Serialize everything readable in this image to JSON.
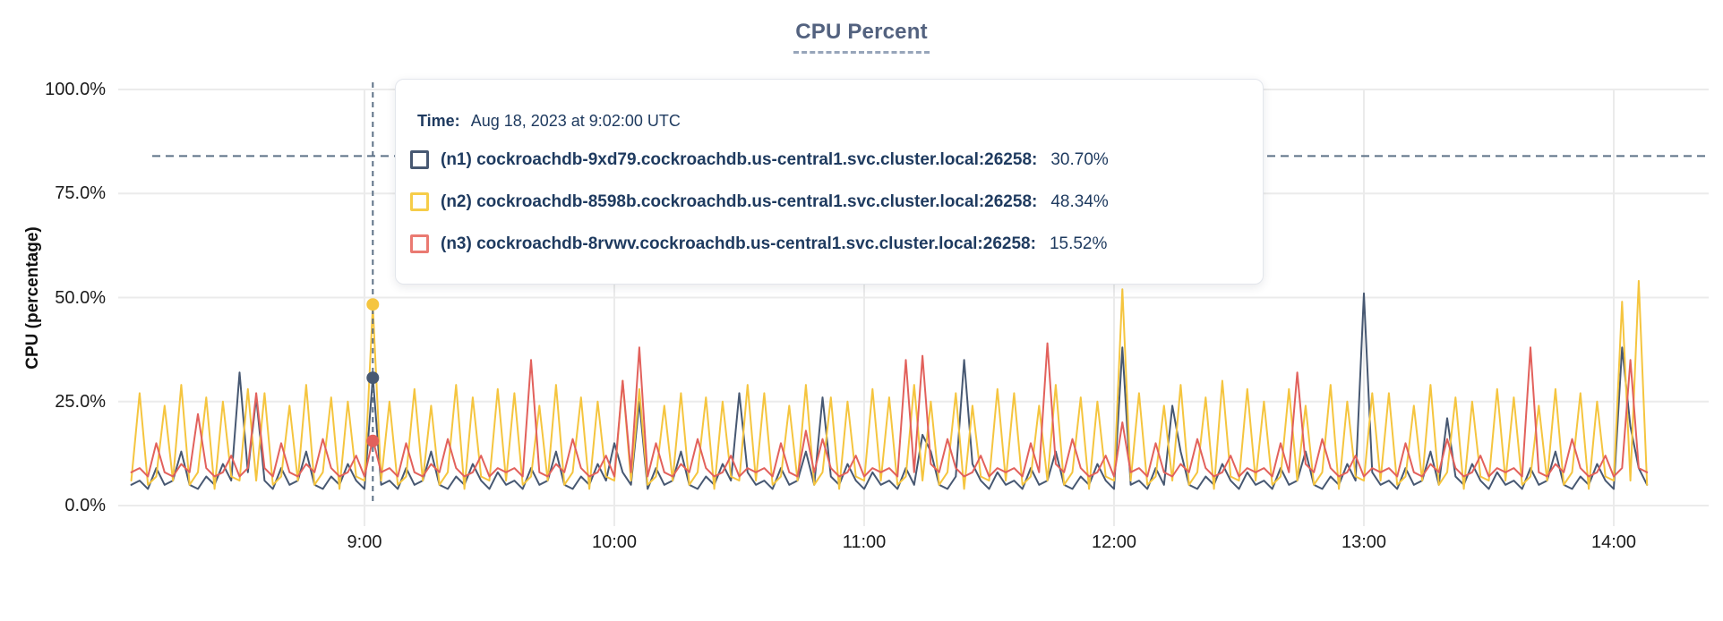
{
  "title": "CPU Percent",
  "tooltip": {
    "time_label": "Time:",
    "time_value": "Aug 18, 2023 at 9:02:00 UTC",
    "rows": [
      {
        "label": "(n1) cockroachdb-9xd79.cockroachdb.us-central1.svc.cluster.local:26258:",
        "value": "30.70%",
        "swatch_color": "#475872"
      },
      {
        "label": "(n2) cockroachdb-8598b.cockroachdb.us-central1.svc.cluster.local:26258:",
        "value": "48.34%",
        "swatch_color": "#f6cd49"
      },
      {
        "label": "(n3) cockroachdb-8rvwv.cockroachdb.us-central1.svc.cluster.local:26258:",
        "value": "15.52%",
        "swatch_color": "#ea7a72"
      }
    ]
  },
  "chart_data": {
    "type": "line",
    "title": "CPU Percent",
    "xlabel": "",
    "ylabel": "CPU (percentage)",
    "ylim": [
      0,
      100
    ],
    "grid": true,
    "crosshair_color": "#5d7186",
    "threshold_dashed_percent": 84,
    "y_ticks": [
      {
        "label": "100.0%",
        "value": 100
      },
      {
        "label": "75.0%",
        "value": 75
      },
      {
        "label": "50.0%",
        "value": 50
      },
      {
        "label": "25.0%",
        "value": 25
      },
      {
        "label": "0.0%",
        "value": 0
      }
    ],
    "x_ticks": [
      {
        "label": "9:00",
        "minutes": 540
      },
      {
        "label": "10:00",
        "minutes": 600
      },
      {
        "label": "11:00",
        "minutes": 660
      },
      {
        "label": "12:00",
        "minutes": 720
      },
      {
        "label": "13:00",
        "minutes": 780
      },
      {
        "label": "14:00",
        "minutes": 840
      }
    ],
    "hover": {
      "time": "9:02",
      "minutes": 542,
      "points": [
        {
          "series": "n1",
          "value": 30.7
        },
        {
          "series": "n2",
          "value": 48.34
        },
        {
          "series": "n3",
          "value": 15.52
        }
      ]
    },
    "x_start_minutes": 484,
    "x_step_minutes": 2,
    "series": [
      {
        "name": "(n1) cockroachdb-9xd79.cockroachdb.us-central1.svc.cluster.local:26258",
        "color": "#475872",
        "values": [
          5,
          6,
          4,
          9,
          5,
          6,
          13,
          5,
          4,
          7,
          5,
          10,
          6,
          32,
          8,
          26,
          6,
          4,
          9,
          5,
          6,
          13,
          5,
          4,
          7,
          5,
          10,
          6,
          4,
          31,
          5,
          6,
          4,
          9,
          5,
          6,
          13,
          5,
          4,
          7,
          5,
          10,
          6,
          4,
          8,
          5,
          6,
          4,
          9,
          5,
          6,
          13,
          5,
          4,
          7,
          5,
          10,
          6,
          15,
          8,
          5,
          25,
          4,
          9,
          5,
          6,
          13,
          5,
          4,
          7,
          5,
          10,
          6,
          27,
          8,
          5,
          6,
          4,
          9,
          5,
          6,
          13,
          5,
          26,
          7,
          5,
          10,
          6,
          4,
          8,
          5,
          6,
          4,
          9,
          5,
          17,
          13,
          5,
          4,
          7,
          35,
          10,
          6,
          4,
          8,
          5,
          6,
          4,
          9,
          5,
          6,
          13,
          5,
          4,
          7,
          5,
          10,
          6,
          4,
          38,
          5,
          6,
          4,
          9,
          5,
          24,
          13,
          5,
          4,
          7,
          5,
          10,
          6,
          4,
          8,
          5,
          6,
          4,
          9,
          5,
          6,
          13,
          5,
          4,
          7,
          5,
          10,
          6,
          51,
          8,
          5,
          6,
          4,
          9,
          5,
          6,
          13,
          5,
          21,
          7,
          5,
          10,
          6,
          4,
          8,
          5,
          6,
          4,
          9,
          5,
          6,
          13,
          5,
          4,
          7,
          5,
          10,
          6,
          4,
          38,
          19,
          9,
          5
        ]
      },
      {
        "name": "(n2) cockroachdb-8598b.cockroachdb.us-central1.svc.cluster.local:26258",
        "color": "#f5c53f",
        "values": [
          6,
          27,
          5,
          7,
          24,
          6,
          29,
          5,
          8,
          26,
          4,
          25,
          7,
          6,
          28,
          6,
          27,
          5,
          7,
          24,
          6,
          29,
          5,
          8,
          26,
          4,
          25,
          7,
          6,
          48,
          6,
          25,
          5,
          7,
          28,
          6,
          24,
          5,
          8,
          29,
          4,
          26,
          7,
          6,
          28,
          6,
          27,
          5,
          7,
          24,
          6,
          29,
          5,
          8,
          26,
          4,
          25,
          7,
          6,
          30,
          6,
          28,
          5,
          7,
          24,
          6,
          27,
          5,
          8,
          26,
          4,
          25,
          7,
          6,
          29,
          6,
          27,
          5,
          7,
          24,
          6,
          29,
          5,
          8,
          26,
          4,
          25,
          7,
          6,
          28,
          6,
          26,
          5,
          7,
          29,
          6,
          25,
          5,
          8,
          27,
          4,
          24,
          7,
          6,
          28,
          6,
          27,
          5,
          7,
          24,
          6,
          29,
          5,
          8,
          26,
          4,
          25,
          7,
          6,
          52,
          6,
          27,
          5,
          7,
          24,
          6,
          29,
          5,
          8,
          26,
          4,
          30,
          7,
          6,
          28,
          6,
          25,
          5,
          7,
          28,
          6,
          24,
          5,
          8,
          29,
          4,
          25,
          7,
          6,
          27,
          6,
          27,
          5,
          7,
          24,
          6,
          29,
          5,
          8,
          26,
          4,
          25,
          7,
          6,
          28,
          6,
          26,
          5,
          7,
          24,
          6,
          28,
          5,
          8,
          27,
          4,
          25,
          7,
          6,
          49,
          6,
          54,
          5
        ]
      },
      {
        "name": "(n3) cockroachdb-8rvwv.cockroachdb.us-central1.svc.cluster.local:26258",
        "color": "#e2615c",
        "values": [
          8,
          9,
          7,
          15,
          8,
          7,
          10,
          8,
          22,
          9,
          7,
          8,
          12,
          7,
          9,
          27,
          9,
          7,
          15,
          8,
          7,
          10,
          8,
          16,
          9,
          7,
          8,
          12,
          7,
          16,
          8,
          9,
          7,
          15,
          8,
          7,
          10,
          8,
          16,
          9,
          7,
          8,
          12,
          7,
          9,
          8,
          9,
          7,
          35,
          8,
          7,
          10,
          8,
          16,
          9,
          7,
          8,
          12,
          7,
          30,
          8,
          38,
          7,
          15,
          8,
          7,
          10,
          8,
          16,
          9,
          7,
          8,
          12,
          7,
          9,
          8,
          9,
          7,
          15,
          8,
          7,
          18,
          8,
          16,
          9,
          7,
          8,
          12,
          7,
          9,
          8,
          9,
          7,
          35,
          8,
          36,
          10,
          8,
          16,
          9,
          7,
          8,
          12,
          7,
          9,
          8,
          9,
          7,
          15,
          8,
          39,
          10,
          8,
          16,
          9,
          7,
          8,
          12,
          7,
          20,
          8,
          9,
          7,
          15,
          8,
          7,
          10,
          8,
          16,
          9,
          7,
          8,
          12,
          7,
          9,
          8,
          9,
          7,
          15,
          8,
          32,
          10,
          8,
          16,
          9,
          7,
          8,
          12,
          7,
          9,
          8,
          9,
          7,
          15,
          8,
          7,
          10,
          8,
          16,
          9,
          7,
          8,
          12,
          7,
          9,
          8,
          9,
          7,
          38,
          8,
          7,
          10,
          8,
          16,
          9,
          7,
          8,
          12,
          7,
          9,
          35,
          9,
          8
        ]
      }
    ]
  }
}
